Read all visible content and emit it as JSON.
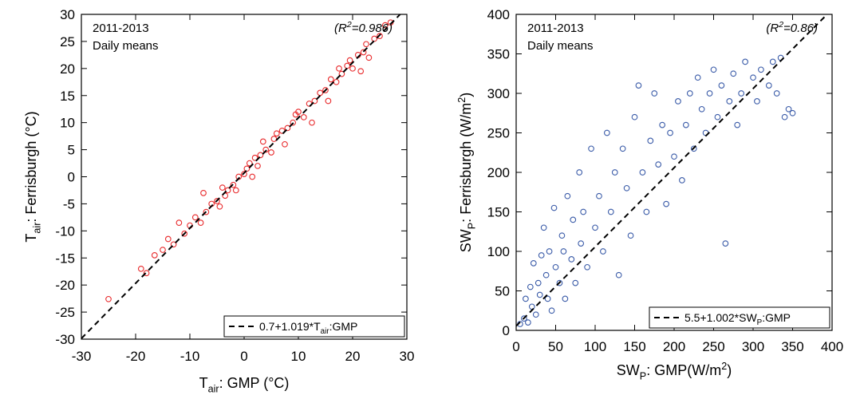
{
  "chart_data": [
    {
      "type": "scatter",
      "notes": [
        "2011-2013",
        "Daily means"
      ],
      "r2_label": [
        {
          "text": "(R"
        },
        {
          "text": "2",
          "shift": "sup"
        },
        {
          "text": "=0.986)"
        }
      ],
      "xlabel": [
        {
          "text": "T"
        },
        {
          "text": "air",
          "shift": "sub"
        },
        {
          "text": ": GMP (°C)"
        }
      ],
      "ylabel": [
        {
          "text": "T"
        },
        {
          "text": "air",
          "shift": "sub"
        },
        {
          "text": ": Ferrisburgh (°C)"
        }
      ],
      "legend_label": [
        {
          "text": "0.7+1.019*T"
        },
        {
          "text": "air",
          "shift": "sub"
        },
        {
          "text": ":GMP"
        }
      ],
      "legend": "lower right",
      "fit": {
        "intercept": 0.7,
        "slope": 1.019
      },
      "color": "#e8292b",
      "xlim": [
        -30,
        30
      ],
      "ylim": [
        -30,
        30
      ],
      "xticks": [
        -30,
        -20,
        -10,
        0,
        10,
        20,
        30
      ],
      "yticks": [
        -30,
        -25,
        -20,
        -15,
        -10,
        -5,
        0,
        5,
        10,
        15,
        20,
        25,
        30
      ],
      "x": [
        -25,
        -19,
        -18,
        -16.5,
        -15,
        -14,
        -13,
        -12,
        -11,
        -10,
        -9,
        -8,
        -7.5,
        -7,
        -6,
        -5,
        -4.5,
        -4,
        -3.5,
        -3,
        -2,
        -1.5,
        -1,
        0,
        0.5,
        1,
        1.5,
        2,
        2.5,
        3,
        3.5,
        4,
        5,
        5.5,
        6,
        7,
        7.5,
        8,
        9,
        9.5,
        10,
        11,
        12,
        12.5,
        13,
        14,
        15,
        15.5,
        16,
        17,
        17.5,
        18,
        19,
        19.5,
        20,
        21,
        21.5,
        22,
        22.5,
        23,
        24,
        25,
        26,
        27
      ],
      "values": [
        -22.6,
        -17,
        -17.8,
        -14.5,
        -13.5,
        -11.5,
        -12.5,
        -8.5,
        -10.5,
        -9,
        -7.5,
        -8.5,
        -3,
        -6.5,
        -5,
        -4.5,
        -5.5,
        -2,
        -3.5,
        -2.5,
        -1.5,
        -2.5,
        0,
        0.5,
        1.5,
        2.5,
        0,
        3.5,
        2,
        4,
        6.5,
        5,
        4.5,
        7,
        8,
        8.5,
        6,
        9,
        10,
        11.5,
        12,
        11,
        13.5,
        10,
        14,
        15.5,
        16,
        14,
        18,
        17.5,
        20,
        19,
        20.5,
        21.5,
        20,
        22.5,
        19.5,
        23,
        24.5,
        22,
        25.5,
        26,
        28,
        28.5
      ]
    },
    {
      "type": "scatter",
      "notes": [
        "2011-2013",
        "Daily means"
      ],
      "r2_label": [
        {
          "text": "(R"
        },
        {
          "text": "2",
          "shift": "sup"
        },
        {
          "text": "=0.86)"
        }
      ],
      "xlabel": [
        {
          "text": "SW"
        },
        {
          "text": "P",
          "shift": "sub"
        },
        {
          "text": ": GMP(W/m"
        },
        {
          "text": "2",
          "shift": "sup"
        },
        {
          "text": ")"
        }
      ],
      "ylabel": [
        {
          "text": "SW"
        },
        {
          "text": "P",
          "shift": "sub"
        },
        {
          "text": ": Ferrisburgh (W/m"
        },
        {
          "text": "2",
          "shift": "sup"
        },
        {
          "text": ")"
        }
      ],
      "legend_label": [
        {
          "text": "5.5+1.002*SW"
        },
        {
          "text": "P",
          "shift": "sub"
        },
        {
          "text": ":GMP"
        }
      ],
      "legend": "lower right",
      "fit": {
        "intercept": 5.5,
        "slope": 1.002
      },
      "color": "#3a5ba8",
      "xlim": [
        0,
        400
      ],
      "ylim": [
        0,
        400
      ],
      "xticks": [
        0,
        50,
        100,
        150,
        200,
        250,
        300,
        350,
        400
      ],
      "yticks": [
        0,
        50,
        100,
        150,
        200,
        250,
        300,
        350,
        400
      ],
      "x": [
        5,
        10,
        12,
        15,
        18,
        20,
        22,
        25,
        28,
        30,
        32,
        35,
        38,
        40,
        42,
        45,
        48,
        50,
        55,
        58,
        60,
        62,
        65,
        70,
        72,
        75,
        80,
        82,
        85,
        90,
        95,
        100,
        105,
        110,
        115,
        120,
        125,
        130,
        135,
        140,
        145,
        150,
        155,
        160,
        165,
        170,
        175,
        180,
        185,
        190,
        195,
        200,
        205,
        210,
        215,
        220,
        225,
        230,
        235,
        240,
        245,
        250,
        255,
        260,
        265,
        270,
        275,
        280,
        285,
        290,
        300,
        305,
        310,
        320,
        325,
        330,
        335,
        340,
        345,
        350
      ],
      "values": [
        8,
        15,
        40,
        10,
        55,
        30,
        85,
        20,
        60,
        45,
        95,
        130,
        70,
        40,
        100,
        25,
        155,
        80,
        60,
        120,
        100,
        40,
        170,
        90,
        140,
        60,
        200,
        110,
        150,
        80,
        230,
        130,
        170,
        100,
        250,
        150,
        200,
        70,
        230,
        180,
        120,
        270,
        310,
        200,
        150,
        240,
        300,
        210,
        260,
        160,
        250,
        220,
        290,
        190,
        260,
        300,
        230,
        320,
        280,
        250,
        300,
        330,
        270,
        310,
        110,
        290,
        325,
        260,
        300,
        340,
        320,
        290,
        330,
        310,
        340,
        300,
        345,
        270,
        280,
        275
      ]
    }
  ]
}
